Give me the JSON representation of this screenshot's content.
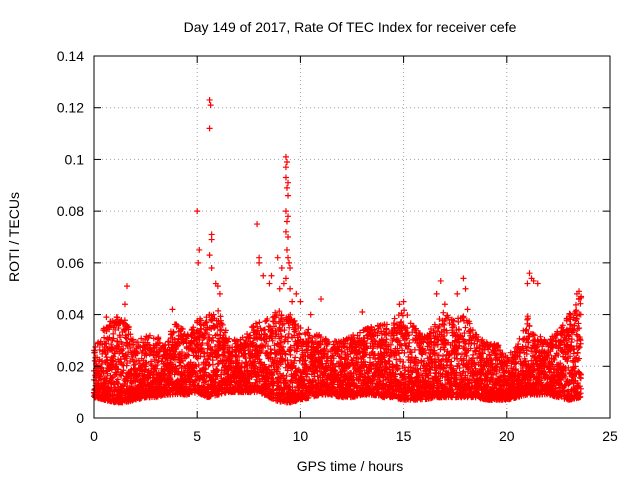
{
  "chart_data": {
    "type": "scatter",
    "title": "Day 149 of 2017, Rate Of TEC Index for receiver cefe",
    "xlabel": "GPS time / hours",
    "ylabel": "ROTI / TECUs",
    "xlim": [
      0,
      25
    ],
    "ylim": [
      0,
      0.14
    ],
    "xticks": [
      "0",
      "5",
      "10",
      "15",
      "20",
      "25"
    ],
    "yticks": [
      "0",
      "0.02",
      "0.04",
      "0.06",
      "0.08",
      "0.1",
      "0.12",
      "0.14"
    ],
    "grid": true,
    "marker": "+",
    "marker_color": "#ff0000",
    "series": [
      {
        "name": "ROTI",
        "baseline_envelope": {
          "x": [
            0.0,
            0.5,
            1.0,
            1.5,
            2.0,
            2.5,
            3.0,
            3.5,
            4.0,
            4.5,
            5.0,
            5.5,
            6.0,
            6.5,
            7.0,
            7.5,
            8.0,
            8.5,
            9.0,
            9.5,
            10.0,
            10.5,
            11.0,
            11.5,
            12.0,
            12.5,
            13.0,
            13.5,
            14.0,
            14.5,
            15.0,
            15.5,
            16.0,
            16.5,
            17.0,
            17.5,
            18.0,
            18.5,
            19.0,
            19.5,
            20.0,
            20.5,
            21.0,
            21.5,
            22.0,
            22.5,
            23.0,
            23.6
          ],
          "low": [
            0.008,
            0.007,
            0.006,
            0.006,
            0.007,
            0.008,
            0.008,
            0.009,
            0.009,
            0.009,
            0.01,
            0.008,
            0.009,
            0.01,
            0.01,
            0.01,
            0.01,
            0.008,
            0.006,
            0.006,
            0.007,
            0.008,
            0.009,
            0.009,
            0.008,
            0.008,
            0.009,
            0.009,
            0.008,
            0.008,
            0.007,
            0.007,
            0.007,
            0.008,
            0.008,
            0.008,
            0.008,
            0.008,
            0.007,
            0.007,
            0.007,
            0.008,
            0.009,
            0.009,
            0.009,
            0.008,
            0.007,
            0.008
          ],
          "high": [
            0.028,
            0.035,
            0.04,
            0.04,
            0.03,
            0.032,
            0.032,
            0.03,
            0.038,
            0.032,
            0.038,
            0.04,
            0.042,
            0.032,
            0.03,
            0.034,
            0.038,
            0.04,
            0.042,
            0.04,
            0.036,
            0.034,
            0.032,
            0.03,
            0.03,
            0.032,
            0.034,
            0.036,
            0.036,
            0.038,
            0.042,
            0.036,
            0.032,
            0.036,
            0.042,
            0.038,
            0.04,
            0.034,
            0.03,
            0.03,
            0.024,
            0.028,
            0.04,
            0.032,
            0.03,
            0.034,
            0.04,
            0.048
          ]
        },
        "peaks": [
          [
            0.6,
            0.039
          ],
          [
            1.1,
            0.039
          ],
          [
            1.5,
            0.044
          ],
          [
            1.6,
            0.051
          ],
          [
            3.8,
            0.042
          ],
          [
            5.0,
            0.08
          ],
          [
            5.1,
            0.065
          ],
          [
            5.05,
            0.06
          ],
          [
            5.6,
            0.123
          ],
          [
            5.65,
            0.121
          ],
          [
            5.6,
            0.112
          ],
          [
            5.7,
            0.071
          ],
          [
            5.7,
            0.069
          ],
          [
            5.6,
            0.063
          ],
          [
            5.7,
            0.058
          ],
          [
            5.9,
            0.052
          ],
          [
            6.0,
            0.051
          ],
          [
            6.1,
            0.048
          ],
          [
            7.9,
            0.075
          ],
          [
            8.0,
            0.062
          ],
          [
            8.0,
            0.06
          ],
          [
            8.2,
            0.055
          ],
          [
            8.5,
            0.052
          ],
          [
            8.6,
            0.055
          ],
          [
            8.9,
            0.062
          ],
          [
            9.1,
            0.058
          ],
          [
            9.2,
            0.052
          ],
          [
            9.0,
            0.05
          ],
          [
            9.3,
            0.101
          ],
          [
            9.35,
            0.099
          ],
          [
            9.3,
            0.097
          ],
          [
            9.3,
            0.093
          ],
          [
            9.4,
            0.091
          ],
          [
            9.35,
            0.089
          ],
          [
            9.4,
            0.086
          ],
          [
            9.3,
            0.08
          ],
          [
            9.4,
            0.078
          ],
          [
            9.35,
            0.076
          ],
          [
            9.3,
            0.072
          ],
          [
            9.4,
            0.07
          ],
          [
            9.35,
            0.065
          ],
          [
            9.4,
            0.062
          ],
          [
            9.45,
            0.06
          ],
          [
            9.5,
            0.058
          ],
          [
            9.3,
            0.054
          ],
          [
            9.5,
            0.05
          ],
          [
            9.6,
            0.045
          ],
          [
            9.8,
            0.048
          ],
          [
            10.0,
            0.045
          ],
          [
            10.5,
            0.04
          ],
          [
            11.0,
            0.046
          ],
          [
            13.0,
            0.041
          ],
          [
            14.8,
            0.044
          ],
          [
            15.0,
            0.045
          ],
          [
            16.6,
            0.048
          ],
          [
            16.8,
            0.053
          ],
          [
            17.0,
            0.044
          ],
          [
            17.6,
            0.048
          ],
          [
            17.9,
            0.054
          ],
          [
            18.0,
            0.05
          ],
          [
            18.1,
            0.042
          ],
          [
            21.1,
            0.056
          ],
          [
            21.2,
            0.054
          ],
          [
            21.0,
            0.052
          ],
          [
            21.3,
            0.053
          ],
          [
            21.5,
            0.052
          ],
          [
            23.4,
            0.048
          ],
          [
            23.5,
            0.049
          ],
          [
            23.6,
            0.047
          ]
        ]
      }
    ]
  }
}
